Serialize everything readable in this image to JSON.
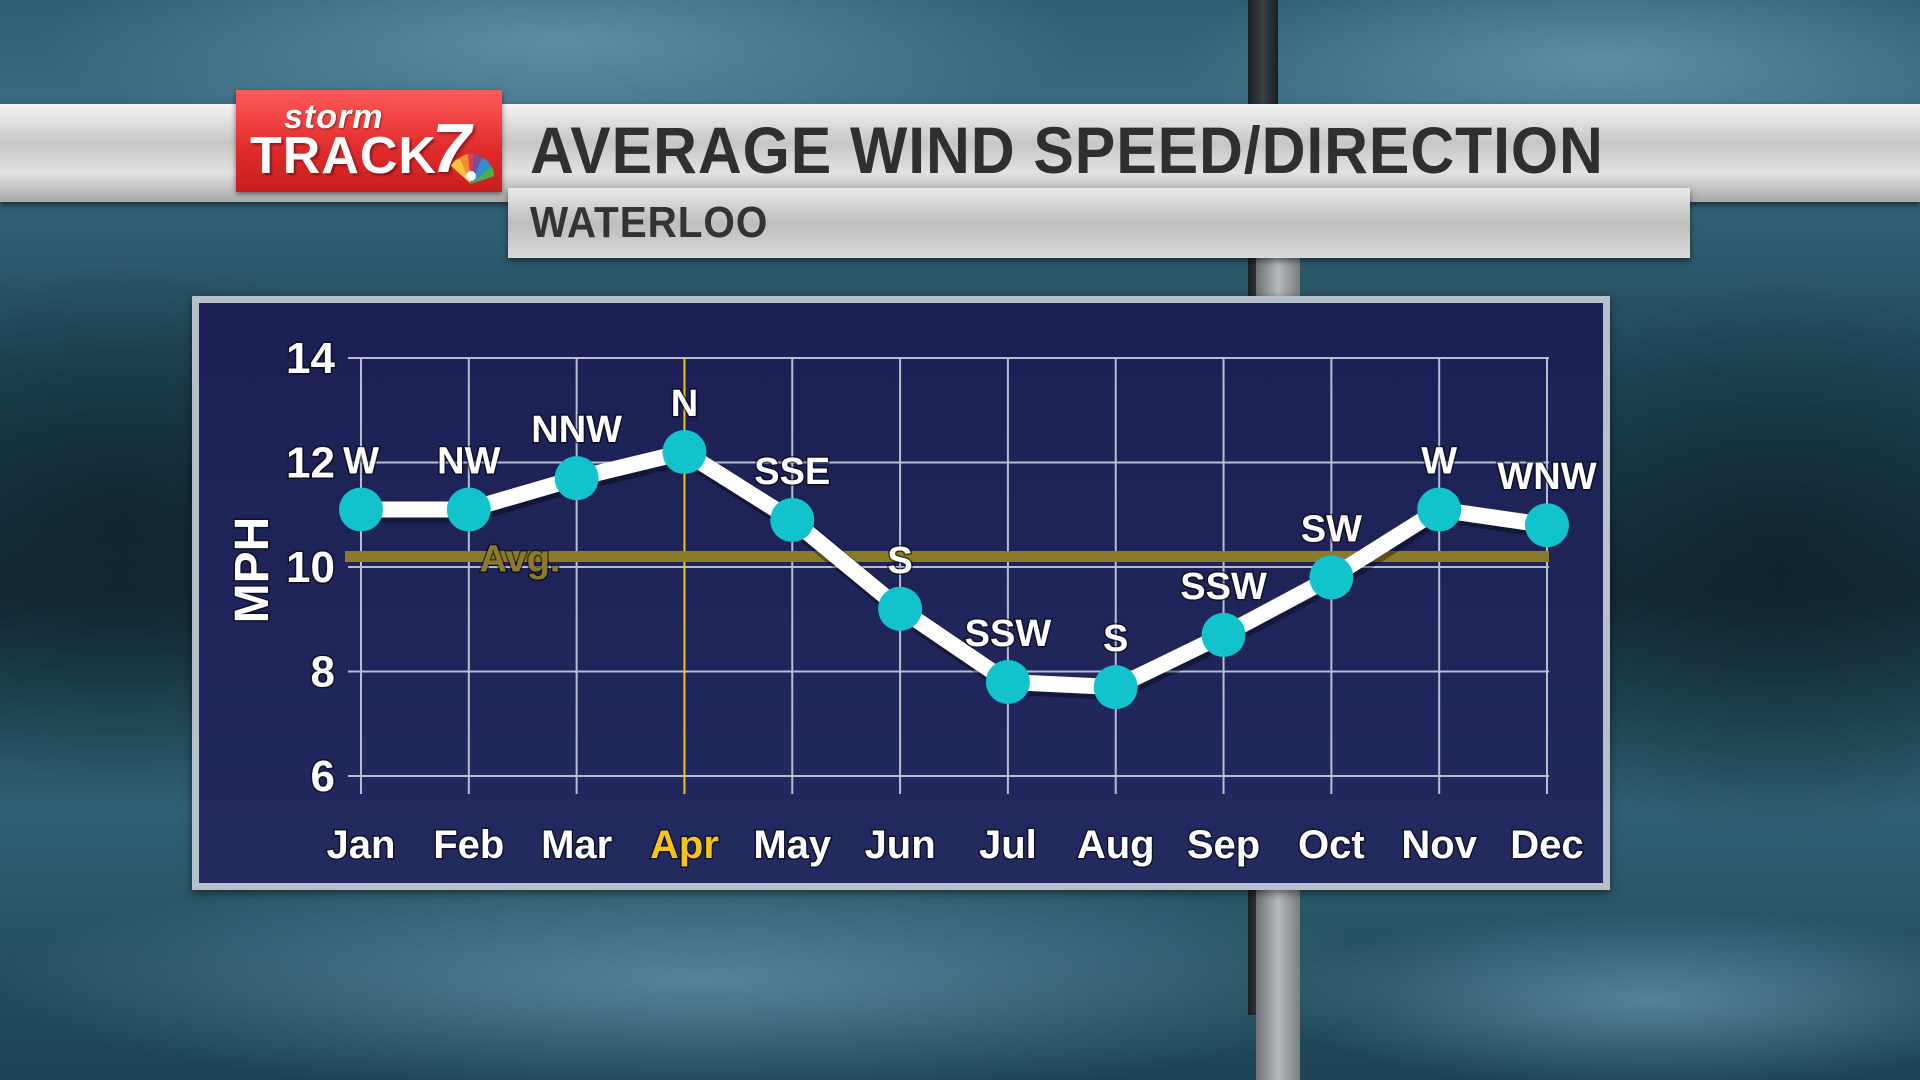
{
  "header": {
    "logo_storm": "storm",
    "logo_track": "TRACK",
    "logo_number": "7",
    "title": "AVERAGE WIND SPEED/DIRECTION",
    "subtitle": "WATERLOO"
  },
  "colors": {
    "line": "#ffffff",
    "marker": "#12c3cc",
    "avg_line": "#8a7a2a",
    "highlight": "#f4c41c",
    "grid": "#b9bdd0",
    "plot_bg": "#1e2458",
    "logo_red": "#e02a2a"
  },
  "chart_data": {
    "type": "line",
    "title": "AVERAGE WIND SPEED/DIRECTION",
    "subtitle": "WATERLOO",
    "xlabel": "",
    "ylabel": "MPH",
    "ylim": [
      6,
      14
    ],
    "yticks": [
      6,
      8,
      10,
      12,
      14
    ],
    "grid": true,
    "categories": [
      "Jan",
      "Feb",
      "Mar",
      "Apr",
      "May",
      "Jun",
      "Jul",
      "Aug",
      "Sep",
      "Oct",
      "Nov",
      "Dec"
    ],
    "highlight_category": "Apr",
    "series": [
      {
        "values": [
          11.1,
          11.1,
          11.7,
          12.2,
          10.9,
          9.2,
          7.8,
          7.7,
          8.7,
          9.8,
          11.1,
          10.8
        ],
        "point_labels": [
          "W",
          "NW",
          "NNW",
          "N",
          "SSE",
          "S",
          "SSW",
          "S",
          "SSW",
          "SW",
          "W",
          "WNW"
        ]
      }
    ],
    "reference_line": {
      "label": "Avg.",
      "value": 10.2
    }
  }
}
